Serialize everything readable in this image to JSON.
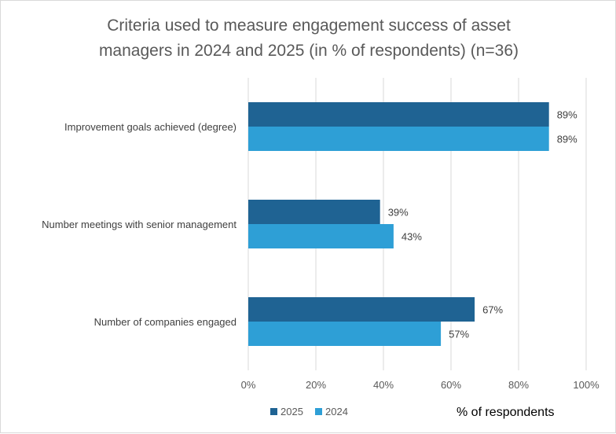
{
  "chart_data": {
    "type": "bar",
    "orientation": "horizontal",
    "title_lines": [
      "Criteria used to measure engagement success of asset",
      "managers in 2024 and 2025 (in % of respondents) (n=36)"
    ],
    "categories": [
      "Improvement goals achieved (degree)",
      "Number meetings with senior management",
      "Number of companies engaged"
    ],
    "series": [
      {
        "name": "2025",
        "color": "#1f6393",
        "values": [
          89,
          39,
          67
        ],
        "labels": [
          "89%",
          "39%",
          "67%"
        ]
      },
      {
        "name": "2024",
        "color": "#2e9fd6",
        "values": [
          89,
          43,
          57
        ],
        "labels": [
          "89%",
          "43%",
          "57%"
        ]
      }
    ],
    "xlim": [
      0,
      100
    ],
    "ticks": [
      0,
      20,
      40,
      60,
      80,
      100
    ],
    "tick_labels": [
      "0%",
      "20%",
      "40%",
      "60%",
      "80%",
      "100%"
    ],
    "xlabel": "% of respondents",
    "ylabel": "",
    "grid": true,
    "legend_position": "bottom-left"
  }
}
